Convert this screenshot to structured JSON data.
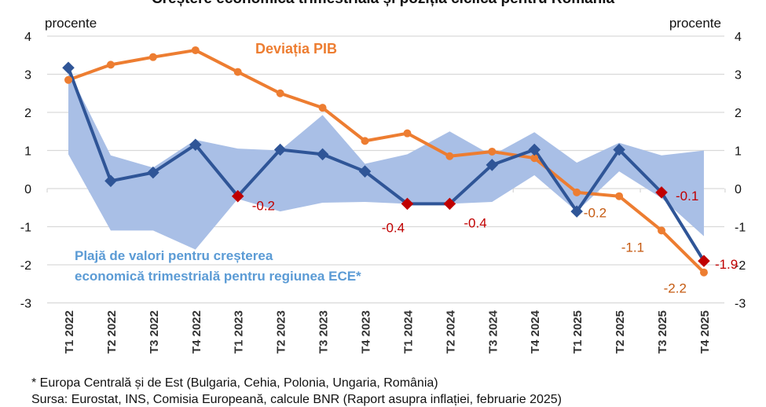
{
  "chart_data": {
    "type": "line",
    "title": "Creștere economică trimestrială și poziția ciclică pentru România",
    "ylabel_left": "procente",
    "ylabel_right": "procente",
    "ylim": [
      -3,
      4
    ],
    "yticks": [
      "4",
      "3",
      "2",
      "1",
      "0",
      "-1",
      "-2",
      "-3"
    ],
    "grid": true,
    "categories": [
      "T1 2022",
      "T2 2022",
      "T3 2022",
      "T4 2022",
      "T1 2023",
      "T2 2023",
      "T3 2023",
      "T4 2023",
      "T1 2024",
      "T2 2024",
      "T3 2024",
      "T4 2024",
      "T1 2025",
      "T2 2025",
      "T3 2025",
      "T4 2025"
    ],
    "band": {
      "name": "Plajă de valori pentru creșterea economică trimestrială pentru regiunea ECE*",
      "upper": [
        3.1,
        0.87,
        0.55,
        1.28,
        1.05,
        1.0,
        1.93,
        0.65,
        0.9,
        1.5,
        0.87,
        1.48,
        0.68,
        1.2,
        0.87,
        1.0
      ],
      "lower": [
        0.9,
        -1.1,
        -1.1,
        -1.6,
        -0.27,
        -0.6,
        -0.37,
        -0.35,
        -0.4,
        -0.4,
        -0.35,
        0.35,
        -0.6,
        0.45,
        -0.25,
        -1.25
      ],
      "color": "#a9bfe6"
    },
    "series": [
      {
        "name": "Creștere economică trimestrială",
        "color": "#2f5597",
        "values": [
          3.17,
          0.2,
          0.42,
          1.15,
          -0.2,
          1.02,
          0.9,
          0.45,
          -0.4,
          -0.4,
          0.62,
          1.02,
          -0.6,
          1.02,
          -0.1,
          -1.9
        ],
        "highlight_color": "#c00000",
        "labels": {
          "4": "-0.2",
          "8": "-0.4",
          "9": "-0.4",
          "14": "-0.1",
          "15": "-1.9"
        }
      },
      {
        "name": "Deviația PIB",
        "color": "#ed7d31",
        "values": [
          2.85,
          3.25,
          3.45,
          3.63,
          3.06,
          2.5,
          2.12,
          1.25,
          1.45,
          0.85,
          0.97,
          0.8,
          -0.1,
          -0.2,
          -1.1,
          -2.2
        ],
        "labels": {
          "13": "-0.2",
          "14": "-1.1",
          "15": "-2.2"
        }
      }
    ],
    "annotation_label_color": "#5b9bd5"
  },
  "footnotes": {
    "note": "* Europa Centrală și de Est (Bulgaria, Cehia, Polonia, Ungaria, România)",
    "source": "Sursa: Eurostat, INS, Comisia Europeană, calcule BNR (Raport asupra inflației, februarie 2025)"
  }
}
